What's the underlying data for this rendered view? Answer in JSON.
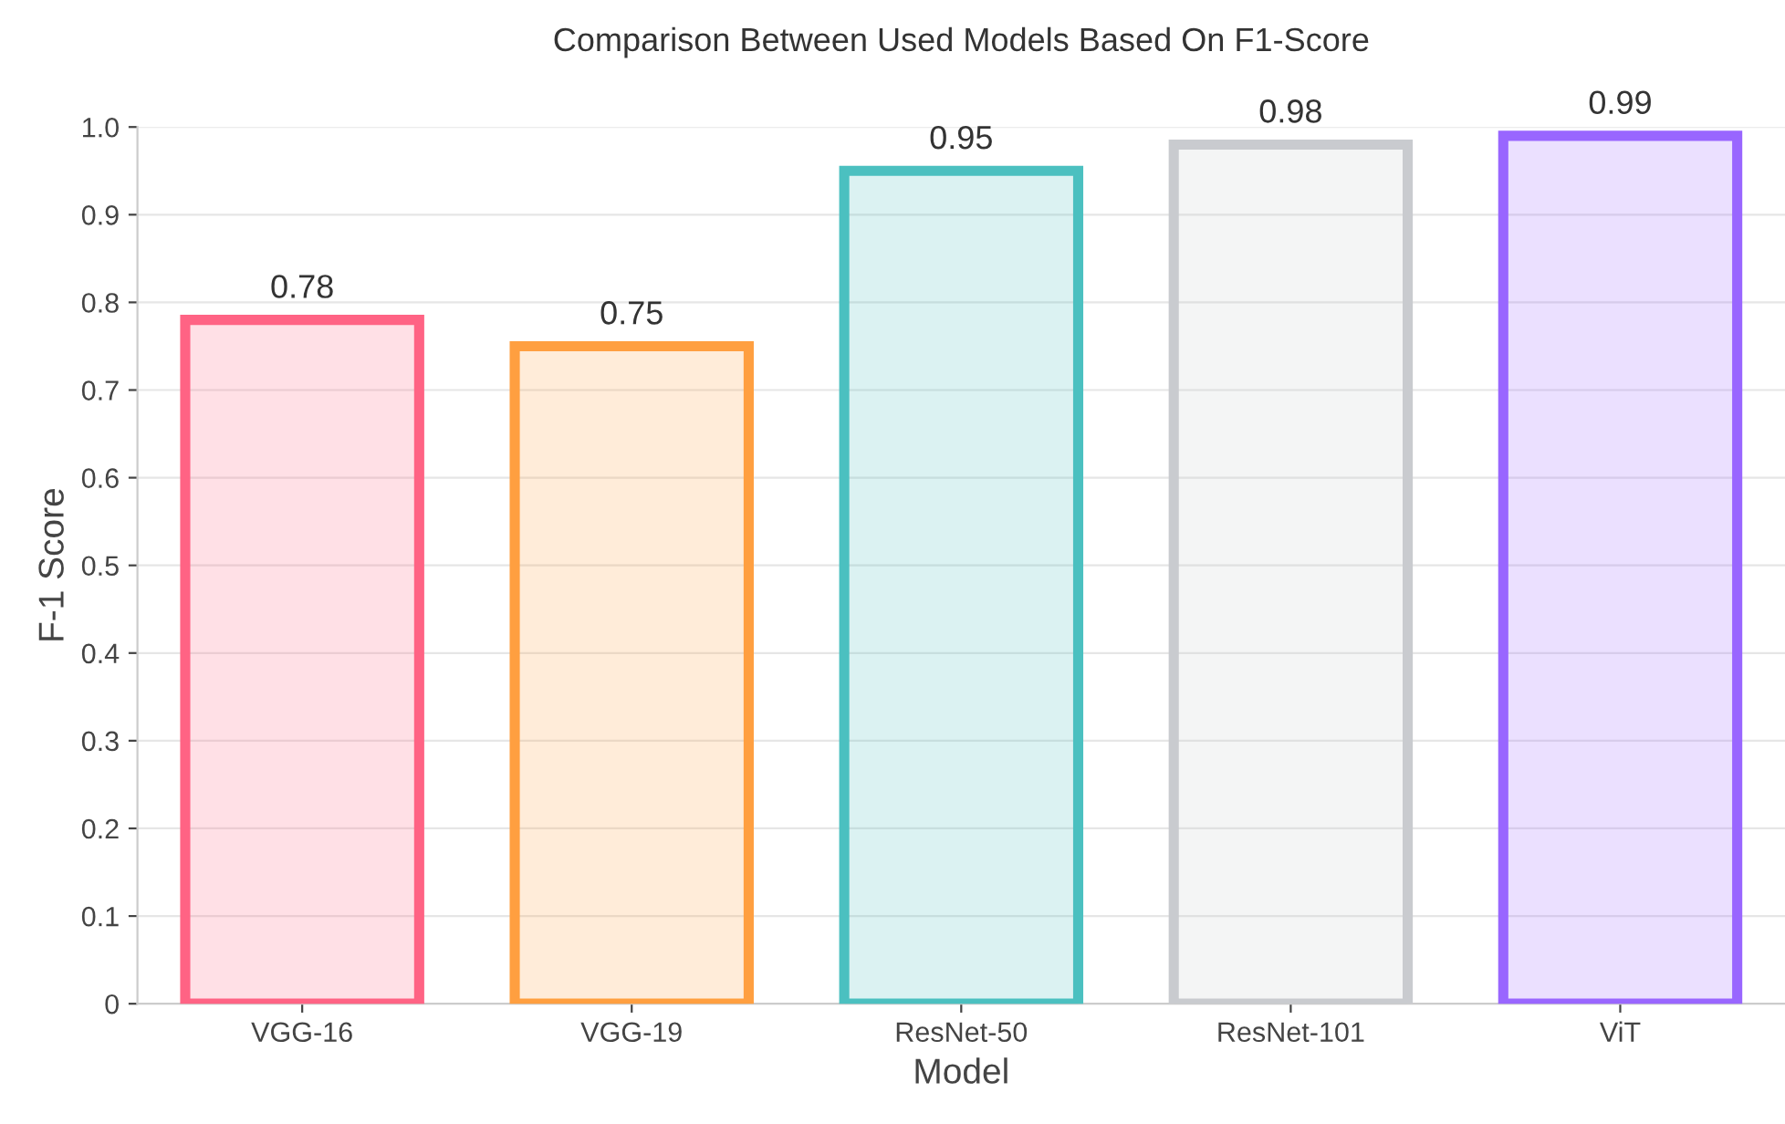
{
  "chart_data": {
    "type": "bar",
    "title": "Comparison Between Used Models Based On F1-Score",
    "xlabel": "Model",
    "ylabel": "F-1 Score",
    "categories": [
      "VGG-16",
      "VGG-19",
      "ResNet-50",
      "ResNet-101",
      "ViT"
    ],
    "values": [
      0.78,
      0.75,
      0.95,
      0.98,
      0.99
    ],
    "colors": [
      "#ff6384",
      "#ff9f40",
      "#4bc0c0",
      "#c9cbcf",
      "#9966ff"
    ],
    "ylim": [
      0,
      1.0
    ],
    "yticks": [
      0,
      0.1,
      0.2,
      0.3,
      0.4,
      0.5,
      0.6,
      0.7,
      0.8,
      0.9,
      {
        "value": 1.0,
        "label": "1.0"
      }
    ],
    "grid": "y",
    "data_labels": true
  }
}
